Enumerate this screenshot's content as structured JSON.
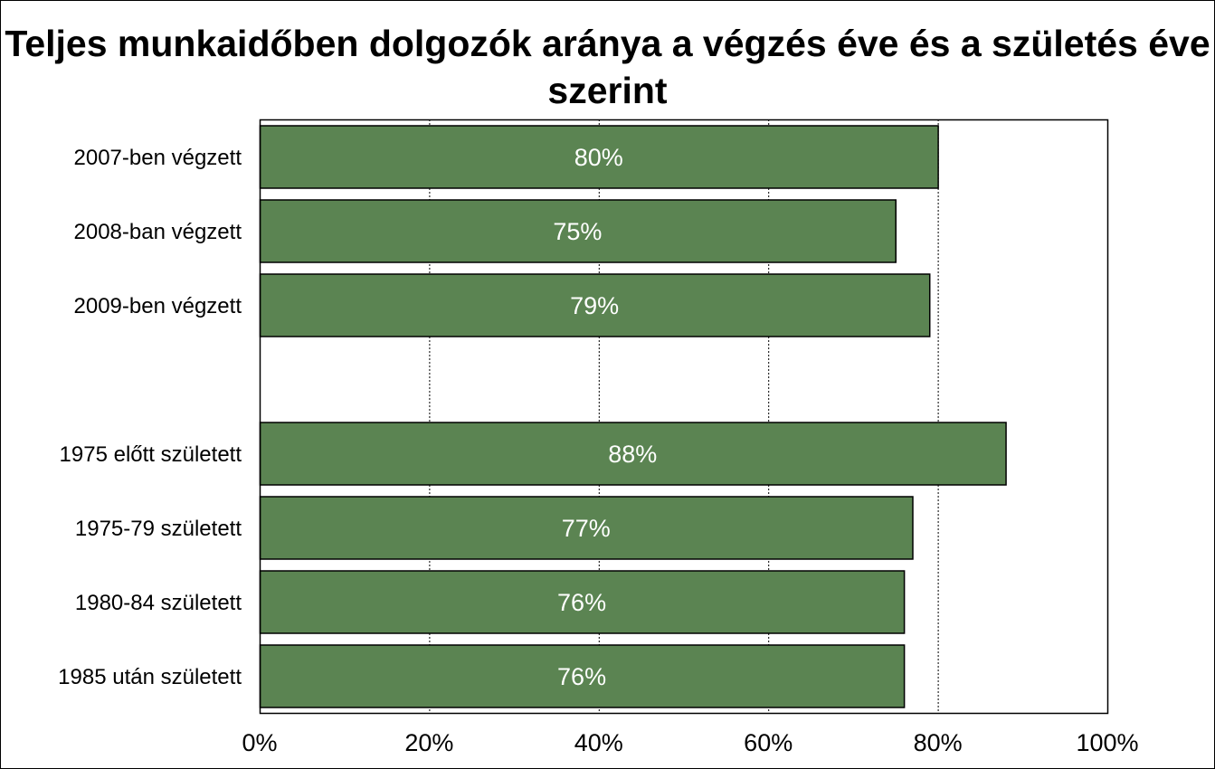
{
  "chart_data": {
    "type": "bar",
    "orientation": "horizontal",
    "title": "Teljes munkaidőben dolgozók aránya a végzés éve és a születés éve szerint",
    "categories": [
      "2007-ben végzett",
      "2008-ban végzett",
      "2009-ben végzett",
      "",
      "1975 előtt született",
      "1975-79 született",
      "1980-84 született",
      "1985 után született"
    ],
    "values": [
      80,
      75,
      79,
      null,
      88,
      77,
      76,
      76
    ],
    "data_labels": [
      "80%",
      "75%",
      "79%",
      "",
      "88%",
      "77%",
      "76%",
      "76%"
    ],
    "xlim": [
      0,
      100
    ],
    "x_ticks": [
      0,
      20,
      40,
      60,
      80,
      100
    ],
    "x_tick_labels": [
      "0%",
      "20%",
      "40%",
      "60%",
      "80%",
      "100%"
    ],
    "grid": "vertical dashed",
    "legend": "none",
    "bar_color": "#5b8452"
  }
}
